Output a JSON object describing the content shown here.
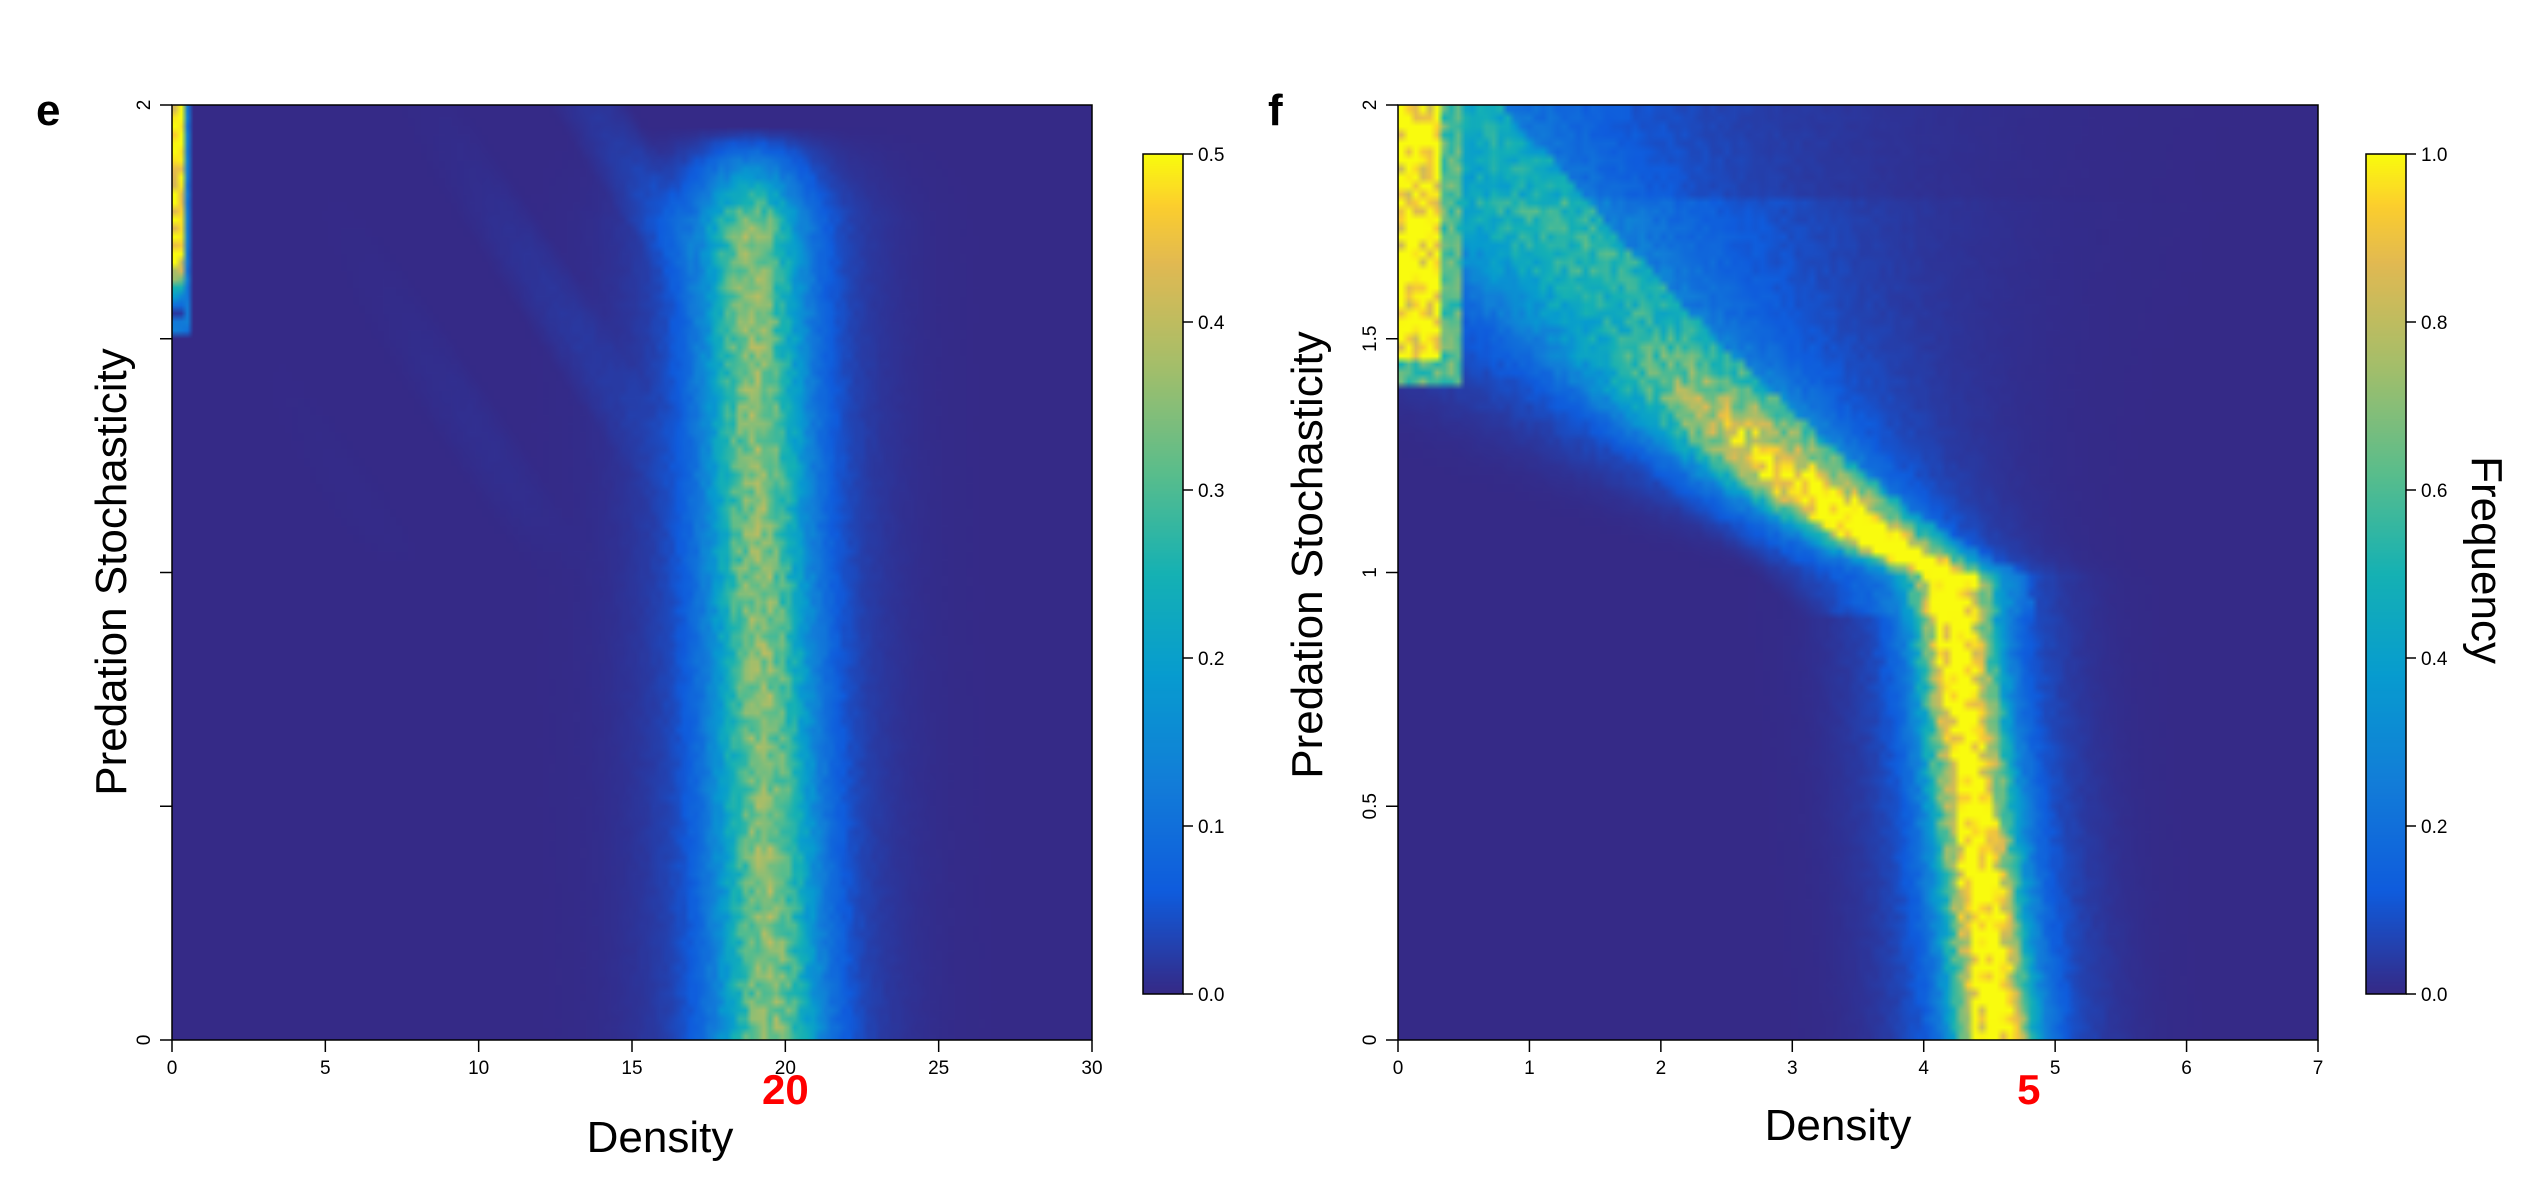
{
  "chart_data": [
    {
      "type": "heatmap",
      "panel_label": "e",
      "xlabel": "Density",
      "ylabel": "Predation Stochasticity",
      "xlim": [
        0,
        30
      ],
      "ylim": [
        0,
        2
      ],
      "x_ticks": [
        "0",
        "5",
        "10",
        "15",
        "20",
        "25",
        "30"
      ],
      "x_tick_values": [
        0,
        5,
        10,
        15,
        20,
        25,
        30
      ],
      "y_ticks": [
        "0",
        "",
        "",
        "",
        "2"
      ],
      "y_tick_values": [
        0,
        0.5,
        1,
        1.5,
        2
      ],
      "highlight_label": "20",
      "highlight_value": 20,
      "colorbar": {
        "title": "",
        "min": 0,
        "max": 0.5,
        "ticks": [
          "0.0",
          "0.1",
          "0.2",
          "0.3",
          "0.4",
          "0.5"
        ],
        "tick_values": [
          0,
          0.1,
          0.2,
          0.3,
          0.4,
          0.5
        ]
      },
      "features": [
        {
          "description": "vertical band",
          "x_center_bottom": 19.5,
          "x_center_top": 18.8,
          "width": 3.5,
          "y_range": [
            0,
            1.9
          ],
          "peak_value": 0.3
        },
        {
          "description": "edge spike at x=0",
          "x": 0.1,
          "y_range": [
            1.6,
            2.0
          ],
          "value": 0.5
        }
      ]
    },
    {
      "type": "heatmap",
      "panel_label": "f",
      "xlabel": "Density",
      "ylabel": "Predation Stochasticity",
      "xlim": [
        0,
        7
      ],
      "ylim": [
        0,
        2
      ],
      "x_ticks": [
        "0",
        "1",
        "2",
        "3",
        "4",
        "5",
        "6",
        "7"
      ],
      "x_tick_values": [
        0,
        1,
        2,
        3,
        4,
        5,
        6,
        7
      ],
      "y_ticks": [
        "0",
        "0.5",
        "1",
        "1.5",
        "2"
      ],
      "y_tick_values": [
        0,
        0.5,
        1,
        1.5,
        2
      ],
      "highlight_label": "5",
      "highlight_value": 4.8,
      "colorbar": {
        "title": "Frequency",
        "min": 0,
        "max": 1.0,
        "ticks": [
          "0.0",
          "0.2",
          "0.4",
          "0.6",
          "0.8",
          "1.0"
        ],
        "tick_values": [
          0,
          0.2,
          0.4,
          0.6,
          0.8,
          1.0
        ]
      },
      "features": [
        {
          "description": "main ridge",
          "x_at_y0": 4.5,
          "x_at_y1": 4.2,
          "x_at_y1_5": 2.0,
          "x_at_y2": 0.2,
          "peak_value": 1.0
        },
        {
          "description": "edge spike at x=0",
          "x": 0.15,
          "y_range": [
            1.45,
            2.0
          ],
          "value": 1.0
        }
      ]
    }
  ]
}
